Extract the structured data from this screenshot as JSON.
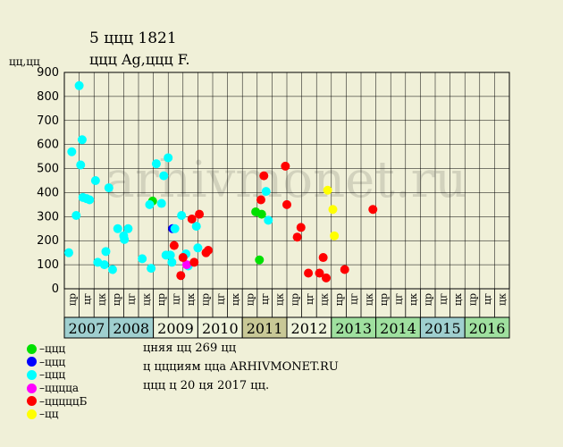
{
  "header": {
    "title_line1": "5 ццц 1821",
    "title_line2": "ццц Ag,ццц F."
  },
  "watermark": "arhivmonet.ru",
  "chart_data": {
    "type": "scatter",
    "ylabel": "цц,цц",
    "ylim": [
      0,
      900
    ],
    "yticks": [
      0,
      100,
      200,
      300,
      400,
      500,
      600,
      700,
      800,
      900
    ],
    "grid": true,
    "quarter_labels": [
      "цр",
      "цг",
      "цк"
    ],
    "years": [
      {
        "label": "2007",
        "color": "#9fcfcf"
      },
      {
        "label": "2008",
        "color": "#9fcfcf"
      },
      {
        "label": "2009",
        "color": "#eef3dc"
      },
      {
        "label": "2010",
        "color": "#eef3dc"
      },
      {
        "label": "2011",
        "color": "#c8c896"
      },
      {
        "label": "2012",
        "color": "#eef3dc"
      },
      {
        "label": "2013",
        "color": "#9fe09f"
      },
      {
        "label": "2014",
        "color": "#9fe09f"
      },
      {
        "label": "2015",
        "color": "#9fcfcf"
      },
      {
        "label": "2016",
        "color": "#9fe09f"
      }
    ],
    "series": [
      {
        "name": "ццц",
        "color": "#00e000",
        "points": [
          [
            5.95,
            365
          ],
          [
            12.9,
            320
          ],
          [
            13.15,
            120
          ],
          [
            13.3,
            310
          ]
        ]
      },
      {
        "name": "ццц",
        "color": "#0000ff",
        "points": [
          [
            7.3,
            250
          ]
        ]
      },
      {
        "name": "ццц",
        "color": "#00ffff",
        "points": [
          [
            0.3,
            150
          ],
          [
            0.5,
            570
          ],
          [
            0.8,
            305
          ],
          [
            1.0,
            845
          ],
          [
            1.1,
            515
          ],
          [
            1.2,
            620
          ],
          [
            1.25,
            380
          ],
          [
            1.5,
            375
          ],
          [
            1.7,
            370
          ],
          [
            2.1,
            450
          ],
          [
            2.25,
            110
          ],
          [
            2.7,
            100
          ],
          [
            2.8,
            155
          ],
          [
            3.0,
            420
          ],
          [
            3.25,
            80
          ],
          [
            3.6,
            250
          ],
          [
            4.0,
            220
          ],
          [
            4.05,
            205
          ],
          [
            4.3,
            250
          ],
          [
            5.25,
            125
          ],
          [
            5.75,
            350
          ],
          [
            5.85,
            85
          ],
          [
            6.2,
            520
          ],
          [
            6.55,
            355
          ],
          [
            6.7,
            470
          ],
          [
            6.85,
            140
          ],
          [
            7.0,
            545
          ],
          [
            7.15,
            140
          ],
          [
            7.25,
            110
          ],
          [
            7.45,
            250
          ],
          [
            7.9,
            305
          ],
          [
            8.2,
            145
          ],
          [
            8.35,
            95
          ],
          [
            8.9,
            260
          ],
          [
            9.0,
            170
          ],
          [
            13.6,
            405
          ],
          [
            13.75,
            285
          ]
        ]
      },
      {
        "name": "цццца",
        "color": "#ff00ff",
        "points": [
          [
            8.25,
            100
          ]
        ]
      },
      {
        "name": "цццццБ",
        "color": "#ff0000",
        "points": [
          [
            7.4,
            180
          ],
          [
            7.85,
            55
          ],
          [
            8.0,
            130
          ],
          [
            8.6,
            290
          ],
          [
            8.75,
            110
          ],
          [
            9.1,
            310
          ],
          [
            9.55,
            150
          ],
          [
            9.7,
            160
          ],
          [
            13.25,
            370
          ],
          [
            13.45,
            470
          ],
          [
            14.9,
            510
          ],
          [
            15.0,
            350
          ],
          [
            15.7,
            215
          ],
          [
            15.95,
            255
          ],
          [
            16.45,
            65
          ],
          [
            17.2,
            65
          ],
          [
            17.45,
            130
          ],
          [
            17.65,
            45
          ],
          [
            18.9,
            80
          ],
          [
            20.8,
            330
          ]
        ]
      },
      {
        "name": "цц",
        "color": "#ffff00",
        "points": [
          [
            17.75,
            410
          ],
          [
            18.1,
            330
          ],
          [
            18.2,
            220
          ]
        ]
      }
    ]
  },
  "notes": [
    "цняя цц 269 цц",
    "ц ццциям цца ARHIVMONET.RU",
    "ццц ц 20 ця 2017 цц."
  ]
}
